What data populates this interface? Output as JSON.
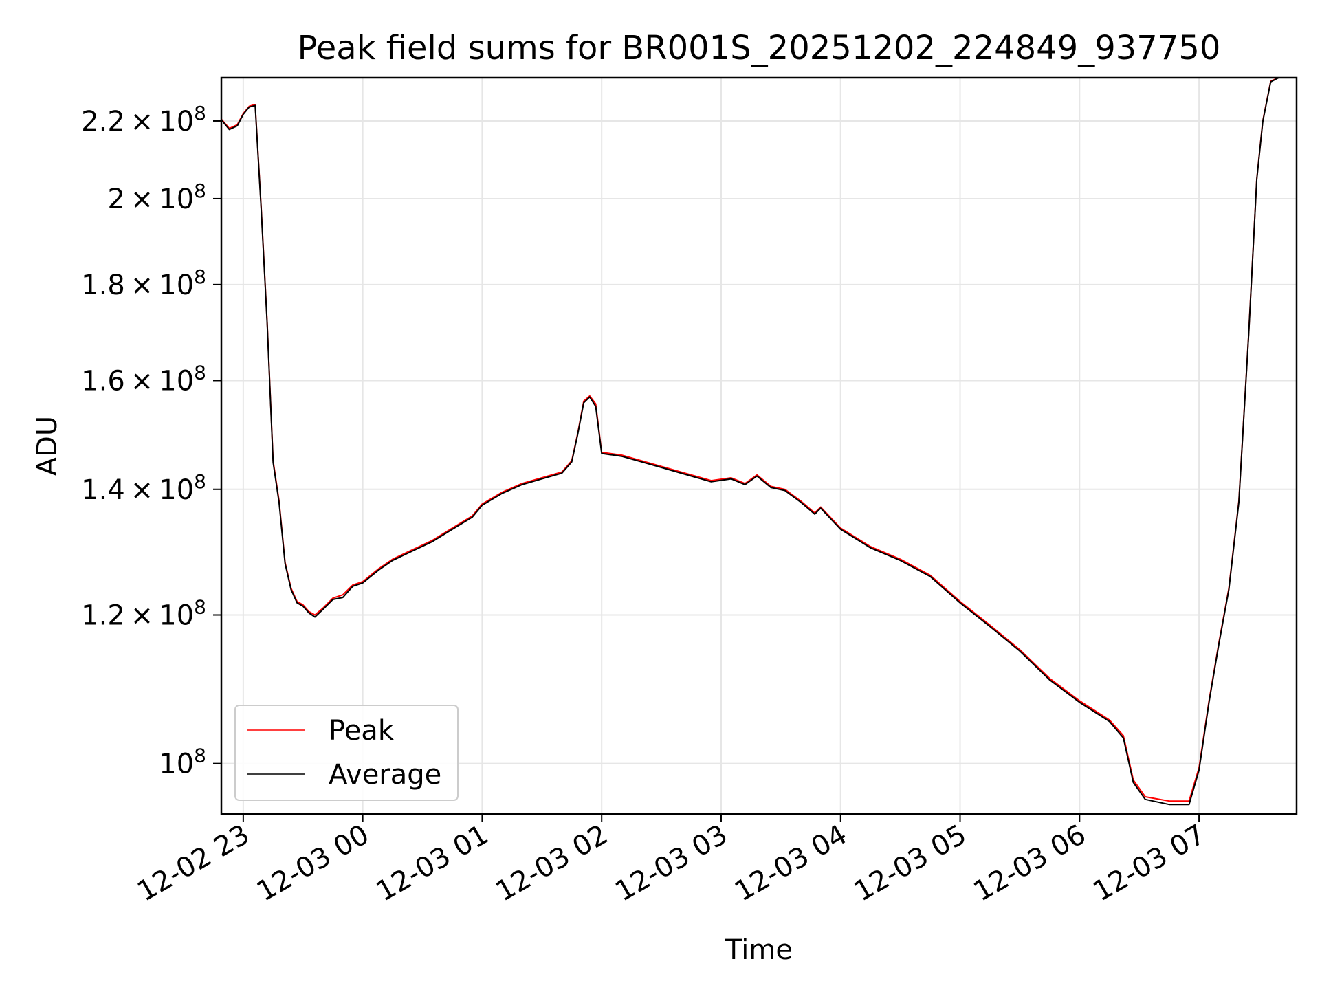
{
  "chart_data": {
    "type": "line",
    "title": "Peak field sums for BR001S_20251202_224849_937750",
    "xlabel": "Time",
    "ylabel": "ADU",
    "y_scale": "log",
    "grid": true,
    "legend_position": "lower-left",
    "xlim": [
      "2025-12-02 22:49",
      "2025-12-03 07:49"
    ],
    "ylim": [
      94000000,
      232000000
    ],
    "x_ticks": [
      {
        "value": "2025-12-02 23:00",
        "label": "12-02 23"
      },
      {
        "value": "2025-12-03 00:00",
        "label": "12-03 00"
      },
      {
        "value": "2025-12-03 01:00",
        "label": "12-03 01"
      },
      {
        "value": "2025-12-03 02:00",
        "label": "12-03 02"
      },
      {
        "value": "2025-12-03 03:00",
        "label": "12-03 03"
      },
      {
        "value": "2025-12-03 04:00",
        "label": "12-03 04"
      },
      {
        "value": "2025-12-03 05:00",
        "label": "12-03 05"
      },
      {
        "value": "2025-12-03 06:00",
        "label": "12-03 06"
      },
      {
        "value": "2025-12-03 07:00",
        "label": "12-03 07"
      }
    ],
    "y_ticks": [
      {
        "value": 100000000,
        "mantissa": "",
        "exp": "8"
      },
      {
        "value": 120000000,
        "mantissa": "1.2",
        "exp": "8"
      },
      {
        "value": 140000000,
        "mantissa": "1.4",
        "exp": "8"
      },
      {
        "value": 160000000,
        "mantissa": "1.6",
        "exp": "8"
      },
      {
        "value": 180000000,
        "mantissa": "1.8",
        "exp": "8"
      },
      {
        "value": 200000000,
        "mantissa": "2",
        "exp": "8"
      },
      {
        "value": 220000000,
        "mantissa": "2.2",
        "exp": "8"
      }
    ],
    "series": [
      {
        "name": "Peak",
        "color": "#ff0000",
        "points": [
          [
            "2025-12-02 22:49",
            220500000
          ],
          [
            "2025-12-02 22:53",
            218000000
          ],
          [
            "2025-12-02 22:57",
            219000000
          ],
          [
            "2025-12-02 23:00",
            222000000
          ],
          [
            "2025-12-02 23:03",
            224000000
          ],
          [
            "2025-12-02 23:06",
            224500000
          ],
          [
            "2025-12-02 23:09",
            198000000
          ],
          [
            "2025-12-02 23:12",
            172000000
          ],
          [
            "2025-12-02 23:15",
            145000000
          ],
          [
            "2025-12-02 23:18",
            138000000
          ],
          [
            "2025-12-02 23:21",
            128000000
          ],
          [
            "2025-12-02 23:24",
            124000000
          ],
          [
            "2025-12-02 23:27",
            122000000
          ],
          [
            "2025-12-02 23:30",
            121500000
          ],
          [
            "2025-12-02 23:33",
            120500000
          ],
          [
            "2025-12-02 23:36",
            120000000
          ],
          [
            "2025-12-02 23:40",
            121000000
          ],
          [
            "2025-12-02 23:45",
            122500000
          ],
          [
            "2025-12-02 23:50",
            123000000
          ],
          [
            "2025-12-02 23:55",
            124500000
          ],
          [
            "2025-12-03 00:00",
            125000000
          ],
          [
            "2025-12-03 00:08",
            127000000
          ],
          [
            "2025-12-03 00:15",
            128500000
          ],
          [
            "2025-12-03 00:25",
            130000000
          ],
          [
            "2025-12-03 00:35",
            131500000
          ],
          [
            "2025-12-03 00:45",
            133500000
          ],
          [
            "2025-12-03 00:55",
            135500000
          ],
          [
            "2025-12-03 01:00",
            137500000
          ],
          [
            "2025-12-03 01:10",
            139500000
          ],
          [
            "2025-12-03 01:20",
            141000000
          ],
          [
            "2025-12-03 01:30",
            142000000
          ],
          [
            "2025-12-03 01:40",
            143000000
          ],
          [
            "2025-12-03 01:45",
            145000000
          ],
          [
            "2025-12-03 01:48",
            150000000
          ],
          [
            "2025-12-03 01:51",
            156000000
          ],
          [
            "2025-12-03 01:54",
            157000000
          ],
          [
            "2025-12-03 01:57",
            155500000
          ],
          [
            "2025-12-03 02:00",
            146500000
          ],
          [
            "2025-12-03 02:10",
            146000000
          ],
          [
            "2025-12-03 02:20",
            145000000
          ],
          [
            "2025-12-03 02:30",
            144000000
          ],
          [
            "2025-12-03 02:45",
            142500000
          ],
          [
            "2025-12-03 02:55",
            141500000
          ],
          [
            "2025-12-03 03:05",
            142000000
          ],
          [
            "2025-12-03 03:12",
            141000000
          ],
          [
            "2025-12-03 03:18",
            142500000
          ],
          [
            "2025-12-03 03:25",
            140500000
          ],
          [
            "2025-12-03 03:32",
            140000000
          ],
          [
            "2025-12-03 03:40",
            138000000
          ],
          [
            "2025-12-03 03:47",
            136000000
          ],
          [
            "2025-12-03 03:50",
            137000000
          ],
          [
            "2025-12-03 04:00",
            133500000
          ],
          [
            "2025-12-03 04:15",
            130500000
          ],
          [
            "2025-12-03 04:30",
            128500000
          ],
          [
            "2025-12-03 04:45",
            126000000
          ],
          [
            "2025-12-03 05:00",
            122000000
          ],
          [
            "2025-12-03 05:15",
            118500000
          ],
          [
            "2025-12-03 05:30",
            115000000
          ],
          [
            "2025-12-03 05:45",
            111000000
          ],
          [
            "2025-12-03 06:00",
            108000000
          ],
          [
            "2025-12-03 06:15",
            105500000
          ],
          [
            "2025-12-03 06:22",
            103500000
          ],
          [
            "2025-12-03 06:27",
            98000000
          ],
          [
            "2025-12-03 06:33",
            96000000
          ],
          [
            "2025-12-03 06:45",
            95500000
          ],
          [
            "2025-12-03 06:55",
            95500000
          ],
          [
            "2025-12-03 07:00",
            99500000
          ],
          [
            "2025-12-03 07:05",
            108000000
          ],
          [
            "2025-12-03 07:10",
            116000000
          ],
          [
            "2025-12-03 07:15",
            124000000
          ],
          [
            "2025-12-03 07:20",
            138000000
          ],
          [
            "2025-12-03 07:25",
            170000000
          ],
          [
            "2025-12-03 07:29",
            205000000
          ],
          [
            "2025-12-03 07:32",
            220000000
          ],
          [
            "2025-12-03 07:36",
            231000000
          ],
          [
            "2025-12-03 07:40",
            232000000
          ]
        ]
      },
      {
        "name": "Average",
        "color": "#000000",
        "points": [
          [
            "2025-12-02 22:49",
            220300000
          ],
          [
            "2025-12-02 22:53",
            217700000
          ],
          [
            "2025-12-02 22:57",
            218700000
          ],
          [
            "2025-12-02 23:00",
            221800000
          ],
          [
            "2025-12-02 23:03",
            223800000
          ],
          [
            "2025-12-02 23:06",
            224200000
          ],
          [
            "2025-12-02 23:09",
            197600000
          ],
          [
            "2025-12-02 23:12",
            171700000
          ],
          [
            "2025-12-02 23:15",
            144700000
          ],
          [
            "2025-12-02 23:18",
            137700000
          ],
          [
            "2025-12-02 23:21",
            127800000
          ],
          [
            "2025-12-02 23:24",
            123800000
          ],
          [
            "2025-12-02 23:27",
            121800000
          ],
          [
            "2025-12-02 23:30",
            121300000
          ],
          [
            "2025-12-02 23:33",
            120300000
          ],
          [
            "2025-12-02 23:36",
            119700000
          ],
          [
            "2025-12-02 23:40",
            120800000
          ],
          [
            "2025-12-02 23:45",
            122300000
          ],
          [
            "2025-12-02 23:50",
            122600000
          ],
          [
            "2025-12-02 23:55",
            124300000
          ],
          [
            "2025-12-03 00:00",
            124800000
          ],
          [
            "2025-12-03 00:08",
            126800000
          ],
          [
            "2025-12-03 00:15",
            128300000
          ],
          [
            "2025-12-03 00:25",
            129800000
          ],
          [
            "2025-12-03 00:35",
            131300000
          ],
          [
            "2025-12-03 00:45",
            133300000
          ],
          [
            "2025-12-03 00:55",
            135300000
          ],
          [
            "2025-12-03 01:00",
            137300000
          ],
          [
            "2025-12-03 01:10",
            139300000
          ],
          [
            "2025-12-03 01:20",
            140800000
          ],
          [
            "2025-12-03 01:30",
            141800000
          ],
          [
            "2025-12-03 01:40",
            142800000
          ],
          [
            "2025-12-03 01:45",
            144800000
          ],
          [
            "2025-12-03 01:48",
            149800000
          ],
          [
            "2025-12-03 01:51",
            155700000
          ],
          [
            "2025-12-03 01:54",
            156800000
          ],
          [
            "2025-12-03 01:57",
            155000000
          ],
          [
            "2025-12-03 02:00",
            146300000
          ],
          [
            "2025-12-03 02:10",
            145800000
          ],
          [
            "2025-12-03 02:20",
            144800000
          ],
          [
            "2025-12-03 02:30",
            143800000
          ],
          [
            "2025-12-03 02:45",
            142300000
          ],
          [
            "2025-12-03 02:55",
            141300000
          ],
          [
            "2025-12-03 03:05",
            141800000
          ],
          [
            "2025-12-03 03:12",
            140800000
          ],
          [
            "2025-12-03 03:18",
            142300000
          ],
          [
            "2025-12-03 03:25",
            140300000
          ],
          [
            "2025-12-03 03:32",
            139800000
          ],
          [
            "2025-12-03 03:40",
            137800000
          ],
          [
            "2025-12-03 03:47",
            135800000
          ],
          [
            "2025-12-03 03:50",
            136800000
          ],
          [
            "2025-12-03 04:00",
            133300000
          ],
          [
            "2025-12-03 04:15",
            130300000
          ],
          [
            "2025-12-03 04:30",
            128300000
          ],
          [
            "2025-12-03 04:45",
            125800000
          ],
          [
            "2025-12-03 05:00",
            121800000
          ],
          [
            "2025-12-03 05:15",
            118300000
          ],
          [
            "2025-12-03 05:30",
            114800000
          ],
          [
            "2025-12-03 05:45",
            110800000
          ],
          [
            "2025-12-03 06:00",
            107800000
          ],
          [
            "2025-12-03 06:15",
            105300000
          ],
          [
            "2025-12-03 06:22",
            103200000
          ],
          [
            "2025-12-03 06:27",
            97700000
          ],
          [
            "2025-12-03 06:33",
            95700000
          ],
          [
            "2025-12-03 06:45",
            95100000
          ],
          [
            "2025-12-03 06:55",
            95100000
          ],
          [
            "2025-12-03 07:00",
            99200000
          ],
          [
            "2025-12-03 07:05",
            107800000
          ],
          [
            "2025-12-03 07:10",
            115800000
          ],
          [
            "2025-12-03 07:15",
            123800000
          ],
          [
            "2025-12-03 07:20",
            137800000
          ],
          [
            "2025-12-03 07:25",
            169800000
          ],
          [
            "2025-12-03 07:29",
            204800000
          ],
          [
            "2025-12-03 07:32",
            219800000
          ],
          [
            "2025-12-03 07:36",
            230800000
          ],
          [
            "2025-12-03 07:40",
            232000000
          ]
        ]
      }
    ]
  }
}
